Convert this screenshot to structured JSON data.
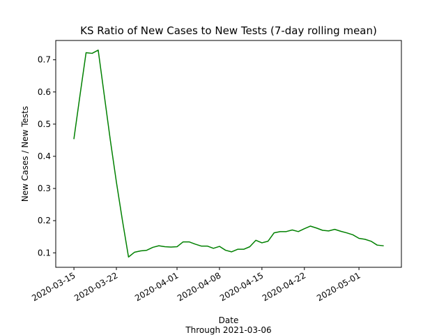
{
  "chart_data": {
    "type": "line",
    "title": "KS Ratio of New Cases to New Tests (7-day rolling mean)",
    "xlabel": "Date",
    "xlabel_sub": "Through 2021-03-06",
    "ylabel": "New Cases / New Tests",
    "xlim": [
      "2020-03-12",
      "2020-05-08"
    ],
    "ylim": [
      0.055,
      0.76
    ],
    "yticks": [
      0.1,
      0.2,
      0.3,
      0.4,
      0.5,
      0.6,
      0.7
    ],
    "xticks": [
      "2020-03-15",
      "2020-03-22",
      "2020-04-01",
      "2020-04-08",
      "2020-04-15",
      "2020-04-22",
      "2020-05-01"
    ],
    "grid": false,
    "line_color": "#008000",
    "series": [
      {
        "x": [
          "2020-03-15",
          "2020-03-16",
          "2020-03-17",
          "2020-03-18",
          "2020-03-19",
          "2020-03-20",
          "2020-03-21",
          "2020-03-22",
          "2020-03-23",
          "2020-03-24",
          "2020-03-25",
          "2020-03-26",
          "2020-03-27",
          "2020-03-28",
          "2020-03-29",
          "2020-03-30",
          "2020-03-31",
          "2020-04-01",
          "2020-04-02",
          "2020-04-03",
          "2020-04-04",
          "2020-04-05",
          "2020-04-06",
          "2020-04-07",
          "2020-04-08",
          "2020-04-09",
          "2020-04-10",
          "2020-04-11",
          "2020-04-12",
          "2020-04-13",
          "2020-04-14",
          "2020-04-15",
          "2020-04-16",
          "2020-04-17",
          "2020-04-18",
          "2020-04-19",
          "2020-04-20",
          "2020-04-21",
          "2020-04-22",
          "2020-04-23",
          "2020-04-24",
          "2020-04-25",
          "2020-04-26",
          "2020-04-27",
          "2020-04-28",
          "2020-04-29",
          "2020-04-30",
          "2020-05-01",
          "2020-05-02",
          "2020-05-03",
          "2020-05-04",
          "2020-05-05"
        ],
        "values": [
          0.455,
          0.59,
          0.722,
          0.72,
          0.73,
          0.59,
          0.45,
          0.32,
          0.2,
          0.087,
          0.102,
          0.106,
          0.108,
          0.117,
          0.122,
          0.119,
          0.118,
          0.119,
          0.134,
          0.134,
          0.127,
          0.121,
          0.121,
          0.114,
          0.12,
          0.108,
          0.103,
          0.111,
          0.111,
          0.119,
          0.139,
          0.131,
          0.136,
          0.162,
          0.166,
          0.166,
          0.171,
          0.166,
          0.175,
          0.183,
          0.177,
          0.17,
          0.168,
          0.173,
          0.167,
          0.162,
          0.156,
          0.145,
          0.142,
          0.136,
          0.124,
          0.122
        ]
      }
    ]
  }
}
